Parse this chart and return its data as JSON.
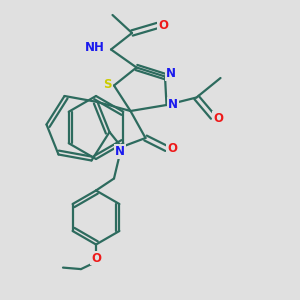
{
  "bg_color": "#e0e0e0",
  "bond_color": "#2d6b5e",
  "bond_width": 1.6,
  "atom_colors": {
    "N": "#1a1aee",
    "O": "#ee1a1a",
    "S": "#cccc00",
    "H": "#888888"
  },
  "font_size_atom": 8.5
}
